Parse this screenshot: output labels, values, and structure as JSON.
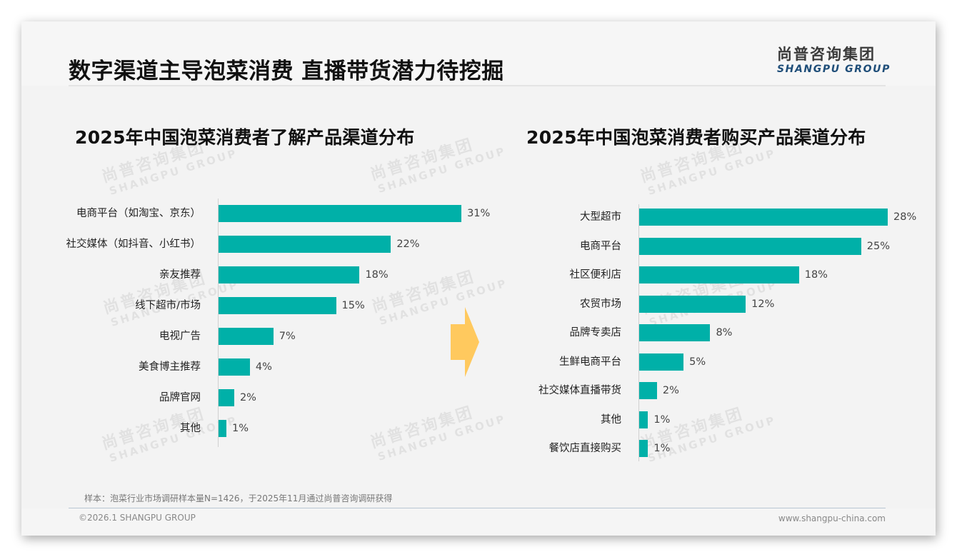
{
  "header": {
    "title": "数字渠道主导泡菜消费 直播带货潜力待挖掘",
    "logo_cn": "尚普咨询集团",
    "logo_en": "SHANGPU GROUP"
  },
  "watermark": {
    "cn": "尚普咨询集团",
    "en": "SHANGPU GROUP"
  },
  "colors": {
    "bar": "#00b0a8",
    "arrow": "#ffc95e",
    "logo_en": "#1f4e79"
  },
  "charts": {
    "left": {
      "title": "2025年中国泡菜消费者了解产品渠道分布",
      "items": [
        {
          "label": "电商平台（如淘宝、京东）",
          "value": 31,
          "display": "31%"
        },
        {
          "label": "社交媒体（如抖音、小红书）",
          "value": 22,
          "display": "22%"
        },
        {
          "label": "亲友推荐",
          "value": 18,
          "display": "18%"
        },
        {
          "label": "线下超市/市场",
          "value": 15,
          "display": "15%"
        },
        {
          "label": "电视广告",
          "value": 7,
          "display": "7%"
        },
        {
          "label": "美食博主推荐",
          "value": 4,
          "display": "4%"
        },
        {
          "label": "品牌官网",
          "value": 2,
          "display": "2%"
        },
        {
          "label": "其他",
          "value": 1,
          "display": "1%"
        }
      ]
    },
    "right": {
      "title": "2025年中国泡菜消费者购买产品渠道分布",
      "items": [
        {
          "label": "大型超市",
          "value": 28,
          "display": "28%"
        },
        {
          "label": "电商平台",
          "value": 25,
          "display": "25%"
        },
        {
          "label": "社区便利店",
          "value": 18,
          "display": "18%"
        },
        {
          "label": "农贸市场",
          "value": 12,
          "display": "12%"
        },
        {
          "label": "品牌专卖店",
          "value": 8,
          "display": "8%"
        },
        {
          "label": "生鲜电商平台",
          "value": 5,
          "display": "5%"
        },
        {
          "label": "社交媒体直播带货",
          "value": 2,
          "display": "2%"
        },
        {
          "label": "其他",
          "value": 1,
          "display": "1%"
        },
        {
          "label": "餐饮店直接购买",
          "value": 1,
          "display": "1%"
        }
      ]
    }
  },
  "chart_data": [
    {
      "type": "bar",
      "orientation": "horizontal",
      "title": "2025年中国泡菜消费者了解产品渠道分布",
      "categories": [
        "电商平台（如淘宝、京东）",
        "社交媒体（如抖音、小红书）",
        "亲友推荐",
        "线下超市/市场",
        "电视广告",
        "美食博主推荐",
        "品牌官网",
        "其他"
      ],
      "values": [
        31,
        22,
        18,
        15,
        7,
        4,
        2,
        1
      ],
      "unit": "%",
      "xlabel": "",
      "ylabel": "",
      "grid": false,
      "legend": "none",
      "data_labels": true
    },
    {
      "type": "bar",
      "orientation": "horizontal",
      "title": "2025年中国泡菜消费者购买产品渠道分布",
      "categories": [
        "大型超市",
        "电商平台",
        "社区便利店",
        "农贸市场",
        "品牌专卖店",
        "生鲜电商平台",
        "社交媒体直播带货",
        "其他",
        "餐饮店直接购买"
      ],
      "values": [
        28,
        25,
        18,
        12,
        8,
        5,
        2,
        1,
        1
      ],
      "unit": "%",
      "xlabel": "",
      "ylabel": "",
      "grid": false,
      "legend": "none",
      "data_labels": true
    }
  ],
  "footer": {
    "sample_note": "样本：泡菜行业市场调研样本量N=1426，于2025年11月通过尚普咨询调研获得",
    "copyright": "©2026.1 SHANGPU GROUP",
    "website": "www.shangpu-china.com"
  }
}
